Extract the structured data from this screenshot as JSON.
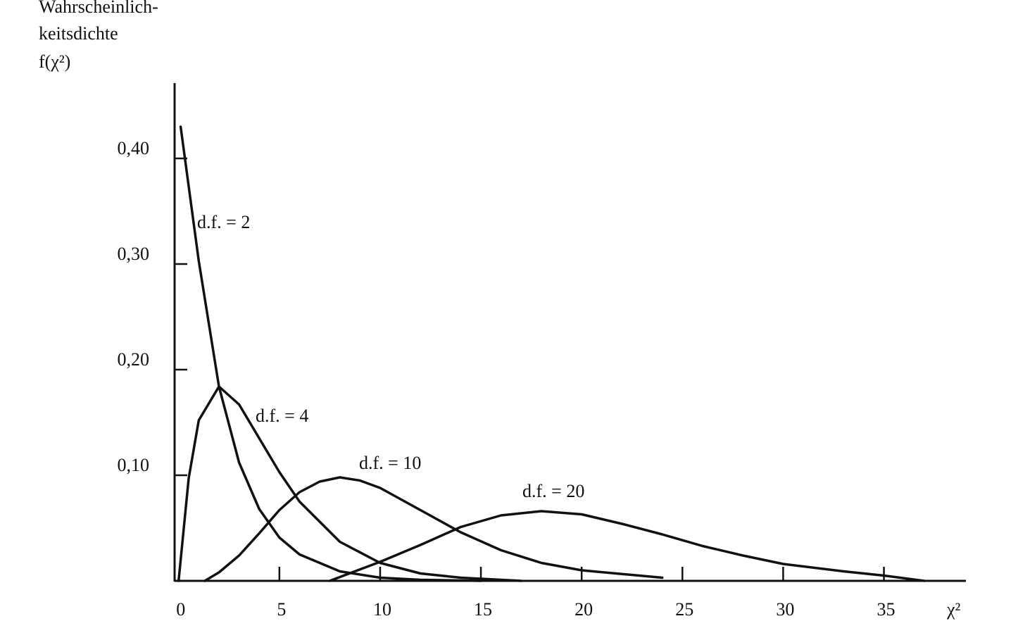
{
  "chart_data": {
    "type": "line",
    "y_label_lines": [
      "Wahrscheinlich-",
      "keitsdichte",
      "f(χ²)"
    ],
    "x_label": "χ²",
    "xlim": [
      -0.2,
      39
    ],
    "ylim": [
      0,
      0.47
    ],
    "xticks": [
      0,
      5,
      10,
      15,
      20,
      25,
      30,
      35
    ],
    "yticks": [
      {
        "value": 0.4,
        "label": "0,40"
      },
      {
        "value": 0.3,
        "label": "0,30"
      },
      {
        "value": 0.2,
        "label": "0,20"
      },
      {
        "value": 0.1,
        "label": "0,10"
      }
    ],
    "color": "#111111",
    "series": [
      {
        "name": "d.f. = 2",
        "x": [
          0.1,
          1,
          2,
          3,
          4,
          5,
          6,
          8,
          10,
          12,
          15
        ],
        "values": [
          0.43,
          0.303,
          0.184,
          0.112,
          0.068,
          0.041,
          0.025,
          0.009,
          0.003,
          0.001,
          0
        ]
      },
      {
        "name": "d.f. = 4",
        "x": [
          0,
          0.5,
          1,
          2,
          3,
          4,
          5,
          6,
          8,
          10,
          12,
          14,
          17
        ],
        "values": [
          0,
          0.097,
          0.152,
          0.184,
          0.167,
          0.135,
          0.103,
          0.075,
          0.037,
          0.017,
          0.007,
          0.003,
          0
        ]
      },
      {
        "name": "d.f. = 10",
        "x": [
          1.3,
          2,
          3,
          4,
          5,
          6,
          7,
          8,
          9,
          10,
          12,
          14,
          16,
          18,
          20,
          24
        ],
        "values": [
          0,
          0.008,
          0.024,
          0.045,
          0.067,
          0.084,
          0.094,
          0.098,
          0.095,
          0.088,
          0.067,
          0.046,
          0.029,
          0.017,
          0.01,
          0.003
        ]
      },
      {
        "name": "d.f. = 20",
        "x": [
          7.5,
          10,
          12,
          14,
          16,
          18,
          20,
          22,
          24,
          26,
          28,
          30,
          33,
          35,
          37
        ],
        "values": [
          0,
          0.018,
          0.034,
          0.051,
          0.062,
          0.066,
          0.063,
          0.054,
          0.044,
          0.033,
          0.024,
          0.016,
          0.009,
          0.005,
          0
        ]
      }
    ]
  }
}
